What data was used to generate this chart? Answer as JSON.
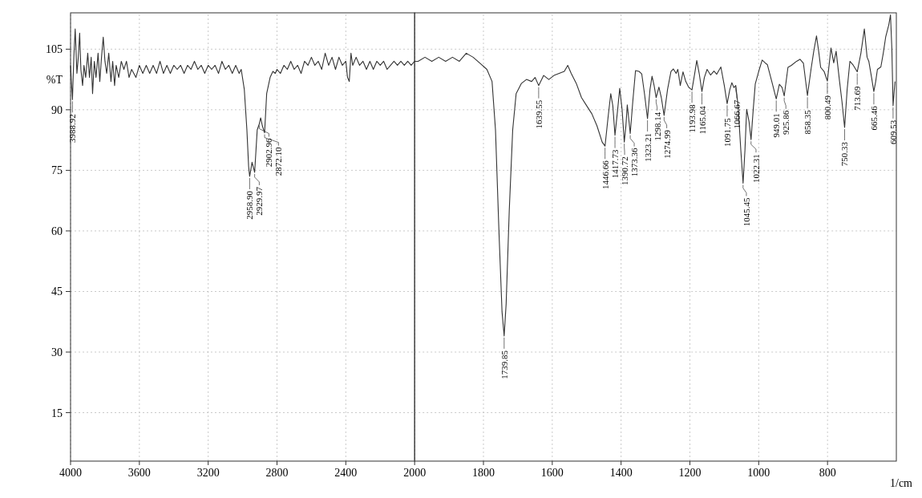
{
  "chart_data": [
    {
      "type": "line",
      "ylabel": "%T",
      "color": "#333333",
      "xlim": [
        4000,
        2000
      ],
      "xticks": [
        4000,
        3600,
        3200,
        2800,
        2400
      ],
      "ylim": [
        3,
        114
      ],
      "yticks": [
        15,
        30,
        45,
        60,
        75,
        90,
        105
      ],
      "grid": true,
      "x": [
        4000,
        3995,
        3988.92,
        3981,
        3973,
        3963,
        3955,
        3947,
        3940,
        3930,
        3922,
        3912,
        3900,
        3890,
        3880,
        3872,
        3862,
        3852,
        3840,
        3830,
        3820,
        3810,
        3800,
        3790,
        3778,
        3765,
        3755,
        3744,
        3735,
        3720,
        3705,
        3690,
        3675,
        3660,
        3645,
        3620,
        3600,
        3580,
        3560,
        3540,
        3520,
        3500,
        3480,
        3460,
        3440,
        3420,
        3400,
        3380,
        3360,
        3340,
        3320,
        3300,
        3280,
        3260,
        3240,
        3220,
        3200,
        3180,
        3160,
        3140,
        3120,
        3100,
        3080,
        3060,
        3040,
        3020,
        3008,
        2990,
        2975,
        2965,
        2958.9,
        2945,
        2929.97,
        2915,
        2902.96,
        2895,
        2885,
        2872.1,
        2860,
        2840,
        2824,
        2810,
        2800,
        2780,
        2760,
        2740,
        2720,
        2700,
        2680,
        2660,
        2640,
        2620,
        2600,
        2580,
        2560,
        2540,
        2520,
        2500,
        2480,
        2460,
        2440,
        2420,
        2400,
        2390,
        2380,
        2370,
        2360,
        2340,
        2320,
        2300,
        2280,
        2260,
        2240,
        2220,
        2200,
        2180,
        2160,
        2140,
        2120,
        2100,
        2080,
        2060,
        2040,
        2020,
        2000
      ],
      "values": [
        101,
        97,
        92.5,
        103,
        110,
        99,
        103,
        109,
        100,
        96,
        101,
        98,
        104,
        98,
        103,
        94,
        102,
        98,
        104,
        97,
        103,
        108,
        102,
        99,
        104,
        97,
        102,
        96,
        101,
        98,
        102,
        100,
        102,
        98,
        100,
        98,
        101,
        99,
        101,
        99,
        101,
        99,
        102,
        99,
        101,
        99,
        101,
        100,
        101,
        99,
        101,
        100,
        102,
        100,
        101,
        99,
        101,
        100,
        101,
        99,
        102,
        100,
        101,
        99,
        101,
        99,
        100,
        95,
        85,
        76,
        73.5,
        77,
        74.5,
        85,
        86.5,
        88,
        86,
        84.3,
        94,
        98,
        99.5,
        99,
        100,
        99,
        101,
        100,
        102,
        100,
        101,
        99,
        102,
        101,
        103,
        101,
        102,
        100,
        104,
        101,
        103,
        100,
        103,
        101,
        102,
        98,
        97,
        104,
        101,
        103,
        101,
        102,
        100,
        102,
        100,
        102,
        101,
        102,
        100,
        101,
        102,
        101,
        102,
        101,
        102,
        101,
        102
      ],
      "annotations": [
        {
          "text": "3988.92",
          "x": 3988.92,
          "y": 92.5
        },
        {
          "text": "2958.90",
          "x": 2958.9,
          "y": 73.5
        },
        {
          "text": "2929.97",
          "x": 2929.97,
          "y": 74.5
        },
        {
          "text": "2902.96",
          "x": 2902.96,
          "y": 86.5
        },
        {
          "text": "2872.10",
          "x": 2872.1,
          "y": 84.3
        }
      ]
    },
    {
      "type": "line",
      "xlabel": "1/cm",
      "color": "#333333",
      "tick_labels": "x",
      "xlim": [
        2000,
        600
      ],
      "xticks": [
        2000,
        1800,
        1600,
        1400,
        1200,
        1000,
        800
      ],
      "ylim": [
        3,
        114
      ],
      "yticks": [
        15,
        30,
        45,
        60,
        75,
        90,
        105
      ],
      "grid": true,
      "x": [
        2000,
        1990,
        1970,
        1950,
        1930,
        1910,
        1890,
        1870,
        1850,
        1830,
        1810,
        1790,
        1775,
        1765,
        1755,
        1746,
        1739.85,
        1734,
        1725,
        1715,
        1705,
        1690,
        1675,
        1660,
        1650,
        1639.55,
        1625,
        1610,
        1595,
        1580,
        1565,
        1555,
        1545,
        1530,
        1515,
        1500,
        1485,
        1470,
        1455,
        1446.66,
        1438,
        1430,
        1424,
        1417.73,
        1410,
        1404,
        1397,
        1390.72,
        1386,
        1382,
        1378,
        1373.36,
        1366,
        1358,
        1348,
        1340,
        1332,
        1323.21,
        1316,
        1310,
        1304,
        1298.14,
        1290,
        1283,
        1274.99,
        1265,
        1255,
        1248,
        1240,
        1235,
        1228,
        1220,
        1212,
        1203,
        1193.98,
        1186,
        1180,
        1173,
        1165.04,
        1158,
        1150,
        1140,
        1130,
        1122,
        1110,
        1100,
        1091.75,
        1084,
        1078,
        1072,
        1066.67,
        1060,
        1052,
        1045.45,
        1040,
        1035,
        1028,
        1022.31,
        1016,
        1010,
        1000,
        990,
        980,
        975,
        962,
        949.01,
        940,
        932,
        925.86,
        915,
        905,
        890,
        880,
        870,
        858.35,
        848,
        840,
        832,
        825,
        820,
        810,
        800.49,
        790,
        782,
        775,
        765,
        758,
        750.33,
        743,
        735,
        725,
        713.69,
        703,
        693,
        685,
        680,
        672,
        665.46,
        660,
        655,
        645,
        638,
        631,
        622,
        617,
        613,
        609.53,
        604
      ],
      "values": [
        102,
        102,
        103,
        102,
        103,
        102,
        103,
        102,
        104,
        103,
        101.5,
        100,
        97,
        85,
        60,
        40,
        34,
        42,
        65,
        85,
        94,
        96.5,
        97.5,
        97,
        98,
        96,
        98.5,
        97.5,
        98.5,
        99,
        99.5,
        101,
        99,
        96.5,
        93,
        91,
        89,
        86,
        82,
        81,
        88,
        94,
        91,
        83.7,
        90,
        95.3,
        90,
        82,
        86,
        91.2,
        88,
        84.1,
        92,
        99.7,
        99.5,
        98.9,
        94,
        87.8,
        95,
        98.3,
        96,
        93,
        95.6,
        93,
        88.6,
        95,
        99.5,
        100.1,
        99,
        100,
        96,
        99.4,
        97,
        95.5,
        94.9,
        99,
        102.2,
        99,
        94.5,
        98,
        100,
        98.6,
        99.6,
        98.8,
        100.6,
        96,
        91.5,
        95,
        96.7,
        95.5,
        96,
        91,
        80,
        71.8,
        80,
        90.1,
        87,
        82.6,
        90,
        96.4,
        99.5,
        102.3,
        101.5,
        101.2,
        97,
        92.7,
        96.3,
        95.5,
        93.4,
        100.5,
        101,
        102,
        102.5,
        101.5,
        93.5,
        100,
        104.5,
        108.3,
        104,
        100.5,
        99.5,
        97.1,
        105.3,
        101.6,
        104.5,
        97,
        92,
        85.6,
        95,
        102,
        101,
        99.4,
        104,
        110,
        103,
        102,
        98,
        94.5,
        97,
        100,
        100.6,
        104,
        108,
        111,
        113.5,
        105,
        91,
        97
      ],
      "annotations": [
        {
          "text": "1739.85",
          "x": 1739.85,
          "y": 34
        },
        {
          "text": "1639.55",
          "x": 1639.55,
          "y": 96
        },
        {
          "text": "1446.66",
          "x": 1446.66,
          "y": 81
        },
        {
          "text": "1417.73",
          "x": 1417.73,
          "y": 83.7
        },
        {
          "text": "1390.72",
          "x": 1390.72,
          "y": 82
        },
        {
          "text": "1373.36",
          "x": 1373.36,
          "y": 84.1
        },
        {
          "text": "1323.21",
          "x": 1323.21,
          "y": 87.8
        },
        {
          "text": "1298.14",
          "x": 1298.14,
          "y": 93
        },
        {
          "text": "1274.99",
          "x": 1274.99,
          "y": 88.6
        },
        {
          "text": "1193.98",
          "x": 1193.98,
          "y": 94.9
        },
        {
          "text": "1165.04",
          "x": 1165.04,
          "y": 94.5
        },
        {
          "text": "1091.75",
          "x": 1091.75,
          "y": 91.5
        },
        {
          "text": "1066.67",
          "x": 1066.67,
          "y": 96
        },
        {
          "text": "1045.45",
          "x": 1045.45,
          "y": 71.8
        },
        {
          "text": "1022.31",
          "x": 1022.31,
          "y": 82.6
        },
        {
          "text": "949.01",
          "x": 949.01,
          "y": 92.7
        },
        {
          "text": "925.86",
          "x": 925.86,
          "y": 93.4
        },
        {
          "text": "858.35",
          "x": 858.35,
          "y": 93.5
        },
        {
          "text": "800.49",
          "x": 800.49,
          "y": 97.1
        },
        {
          "text": "750.33",
          "x": 750.33,
          "y": 85.6
        },
        {
          "text": "713.69",
          "x": 713.69,
          "y": 99.4
        },
        {
          "text": "665.46",
          "x": 665.46,
          "y": 94.5
        },
        {
          "text": "609.53",
          "x": 609.53,
          "y": 91
        }
      ]
    }
  ]
}
